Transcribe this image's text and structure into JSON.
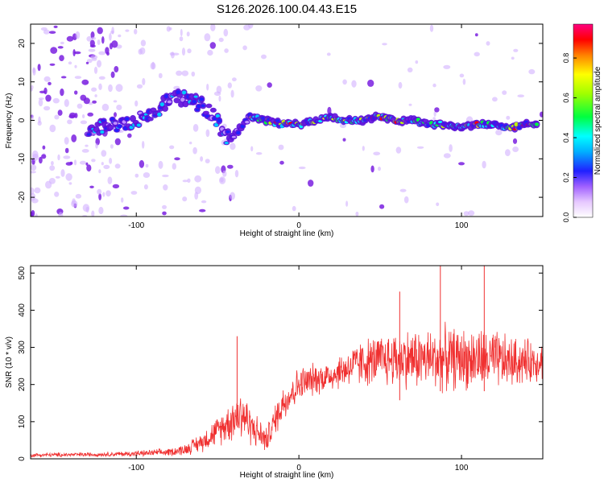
{
  "title": "S126.2026.100.04.43.E15",
  "chart_data": [
    {
      "type": "heatmap",
      "name": "spectrogram",
      "xlabel": "Height of straight line (km)",
      "ylabel": "Frequency (Hz)",
      "xlim": [
        -165,
        150
      ],
      "ylim": [
        -25,
        25
      ],
      "x_ticks": [
        -100,
        0,
        100
      ],
      "y_ticks": [
        -20,
        -10,
        0,
        10,
        20
      ],
      "track": {
        "x": [
          -130,
          -110,
          -100,
          -90,
          -80,
          -70,
          -60,
          -50,
          -45,
          -40,
          -30,
          -20,
          -10,
          0,
          10,
          20,
          30,
          40,
          50,
          60,
          70,
          80,
          90,
          100,
          110,
          120,
          130,
          140,
          145
        ],
        "y": [
          -2,
          -1,
          0,
          2,
          5,
          6,
          4,
          0,
          -5,
          -4,
          1,
          0,
          -1,
          -1,
          0,
          1,
          0,
          0,
          1,
          0,
          0,
          -1,
          -1,
          -2,
          -1,
          -1,
          -2,
          -1,
          -1
        ]
      },
      "colorbar": {
        "label": "Normalized spectral amplitude",
        "range": [
          0.0,
          0.97
        ],
        "ticks": [
          0.0,
          0.2,
          0.4,
          0.6,
          0.8
        ]
      }
    },
    {
      "type": "line",
      "name": "snr",
      "xlabel": "Height of straight line (km)",
      "ylabel": "SNR (10 * v/v)",
      "xlim": [
        -165,
        150
      ],
      "ylim": [
        0,
        520
      ],
      "x_ticks": [
        -100,
        0,
        100
      ],
      "y_ticks": [
        0,
        100,
        200,
        300,
        400,
        500
      ],
      "color": "#f03030",
      "envelope": {
        "x": [
          -165,
          -120,
          -100,
          -80,
          -70,
          -60,
          -50,
          -40,
          -35,
          -30,
          -20,
          -10,
          0,
          10,
          20,
          30,
          40,
          50,
          60,
          70,
          80,
          90,
          100,
          110,
          120,
          130,
          140,
          150
        ],
        "mean": [
          10,
          12,
          14,
          18,
          25,
          45,
          75,
          110,
          125,
          90,
          50,
          150,
          200,
          215,
          225,
          245,
          260,
          265,
          270,
          270,
          268,
          270,
          270,
          268,
          265,
          260,
          262,
          265
        ],
        "spread": [
          6,
          7,
          9,
          12,
          18,
          30,
          45,
          70,
          90,
          60,
          40,
          60,
          55,
          50,
          50,
          60,
          75,
          80,
          90,
          95,
          95,
          100,
          95,
          100,
          95,
          80,
          70,
          60
        ]
      },
      "peaks": [
        {
          "x": -38,
          "y": 330
        },
        {
          "x": 87,
          "y": 520
        },
        {
          "x": 114,
          "y": 520
        },
        {
          "x": 62,
          "y": 450
        }
      ]
    }
  ]
}
